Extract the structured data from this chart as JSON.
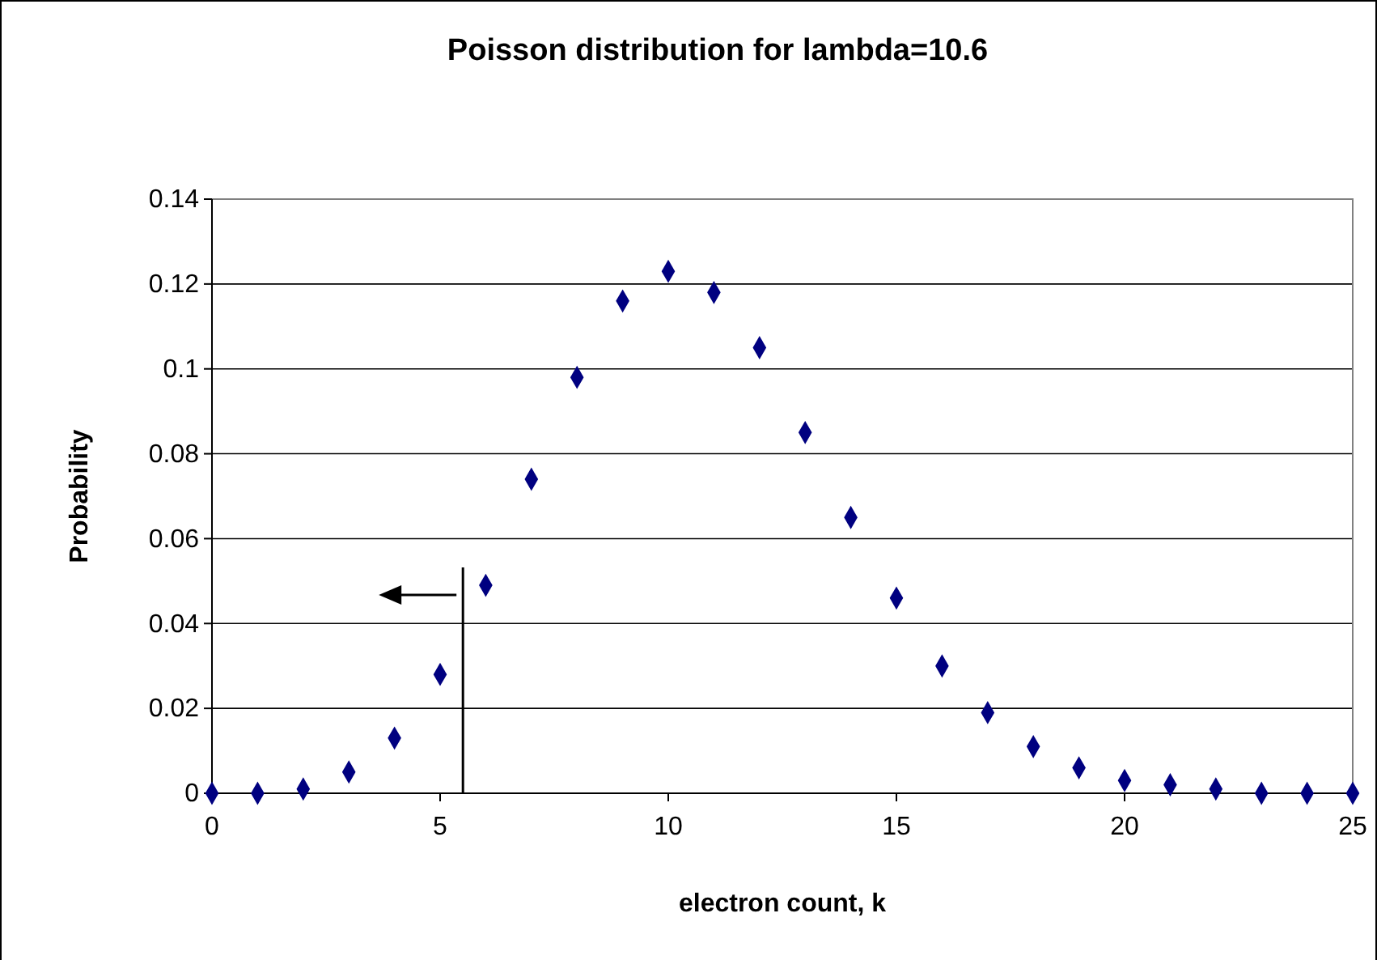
{
  "chart_data": {
    "type": "scatter",
    "title": "Poisson distribution for lambda=10.6",
    "xlabel": "electron count, k",
    "ylabel": "Probability",
    "x": [
      0,
      1,
      2,
      3,
      4,
      5,
      6,
      7,
      8,
      9,
      10,
      11,
      12,
      13,
      14,
      15,
      16,
      17,
      18,
      19,
      20,
      21,
      22,
      23,
      24,
      25
    ],
    "series": [
      {
        "color": "#000080",
        "values": [
          0.0,
          0.0,
          0.001,
          0.005,
          0.013,
          0.028,
          0.049,
          0.074,
          0.098,
          0.116,
          0.123,
          0.118,
          0.105,
          0.085,
          0.065,
          0.046,
          0.03,
          0.019,
          0.011,
          0.006,
          0.003,
          0.002,
          0.001,
          0.0,
          0.0,
          0.0
        ]
      }
    ],
    "xlim": [
      0,
      25
    ],
    "xticks": [
      0,
      5,
      10,
      15,
      20,
      25
    ],
    "ylim": [
      0,
      0.14
    ],
    "yticks": [
      0,
      0.02,
      0.04,
      0.06,
      0.08,
      0.1,
      0.12,
      0.14
    ],
    "grid": "y",
    "marker": "diamond",
    "ref_lines": [
      {
        "axis": "x",
        "value": 5.5,
        "color": "#000000"
      }
    ]
  }
}
